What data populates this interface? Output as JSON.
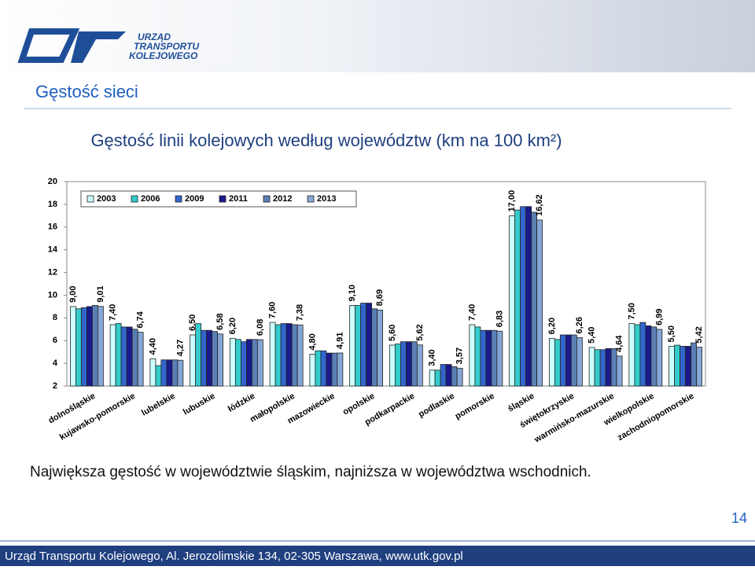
{
  "header": {
    "logo_lines": [
      "URZĄD",
      "TRANSPORTU",
      "KOLEJOWEGO"
    ]
  },
  "slide_title": "Gęstość sieci",
  "chart_data": {
    "type": "bar",
    "title": "Gęstość linii kolejowych według województw (km na 100 km²)",
    "categories": [
      "dolnośląskie",
      "kujawsko-pomorskie",
      "lubelskie",
      "lubuskie",
      "łódzkie",
      "małopolskie",
      "mazowieckie",
      "opolskie",
      "podkarpackie",
      "podlaskie",
      "pomorskie",
      "śląskie",
      "świętokrzyskie",
      "warmińsko-mazurskie",
      "wielkopolskie",
      "zachodniopomorskie"
    ],
    "series": [
      {
        "name": "2003",
        "color": "#ccffff",
        "values": [
          9.0,
          7.4,
          4.4,
          6.5,
          6.2,
          7.6,
          4.8,
          9.1,
          5.6,
          3.4,
          7.4,
          17.0,
          6.2,
          5.4,
          7.5,
          5.5
        ],
        "value_labels": [
          "9,00",
          "7,40",
          "4,40",
          "6,50",
          "6,20",
          "7,60",
          "4,80",
          "9,10",
          "5,60",
          "3,40",
          "7,40",
          "17,00",
          "6,20",
          "5,40",
          "7,50",
          "5,50"
        ]
      },
      {
        "name": "2006",
        "color": "#33cccc",
        "values": [
          8.8,
          7.5,
          3.8,
          7.5,
          6.1,
          7.4,
          5.1,
          9.1,
          5.7,
          3.4,
          7.2,
          17.5,
          6.1,
          5.2,
          7.4,
          5.6
        ]
      },
      {
        "name": "2009",
        "color": "#3366cc",
        "values": [
          8.9,
          7.2,
          4.3,
          6.9,
          5.9,
          7.5,
          5.1,
          9.3,
          5.9,
          3.9,
          6.9,
          17.8,
          6.5,
          5.2,
          7.6,
          5.5
        ]
      },
      {
        "name": "2011",
        "color": "#1a1a8c",
        "values": [
          9.0,
          7.2,
          4.3,
          6.9,
          6.1,
          7.5,
          4.9,
          9.3,
          5.9,
          3.9,
          6.9,
          17.8,
          6.5,
          5.3,
          7.3,
          5.5
        ]
      },
      {
        "name": "2012",
        "color": "#5b7fb5",
        "values": [
          9.1,
          7.0,
          4.3,
          6.8,
          6.1,
          7.4,
          4.9,
          8.8,
          5.9,
          3.7,
          6.9,
          17.3,
          6.5,
          5.3,
          7.2,
          5.8
        ]
      },
      {
        "name": "2013",
        "color": "#86a7d6",
        "values": [
          9.01,
          6.74,
          4.27,
          6.58,
          6.08,
          7.38,
          4.91,
          8.69,
          5.62,
          3.57,
          6.83,
          16.62,
          6.26,
          4.64,
          6.99,
          5.42
        ],
        "value_labels": [
          "9,01",
          "6,74",
          "4,27",
          "6,58",
          "6,08",
          "7,38",
          "4,91",
          "8,69",
          "5,62",
          "3,57",
          "6,83",
          "16,62",
          "6,26",
          "4,64",
          "6,99",
          "5,42"
        ]
      }
    ],
    "ylim": [
      2,
      20
    ],
    "yticks": [
      2,
      4,
      6,
      8,
      10,
      12,
      14,
      16,
      18,
      20
    ],
    "grid": false,
    "legend": "top-left"
  },
  "caption": "Największa gęstość w województwie śląskim, najniższa w województwa wschodnich.",
  "page_number": "14",
  "footer": "Urząd Transportu Kolejowego, Al. Jerozolimskie 134, 02-305 Warszawa, www.utk.gov.pl"
}
